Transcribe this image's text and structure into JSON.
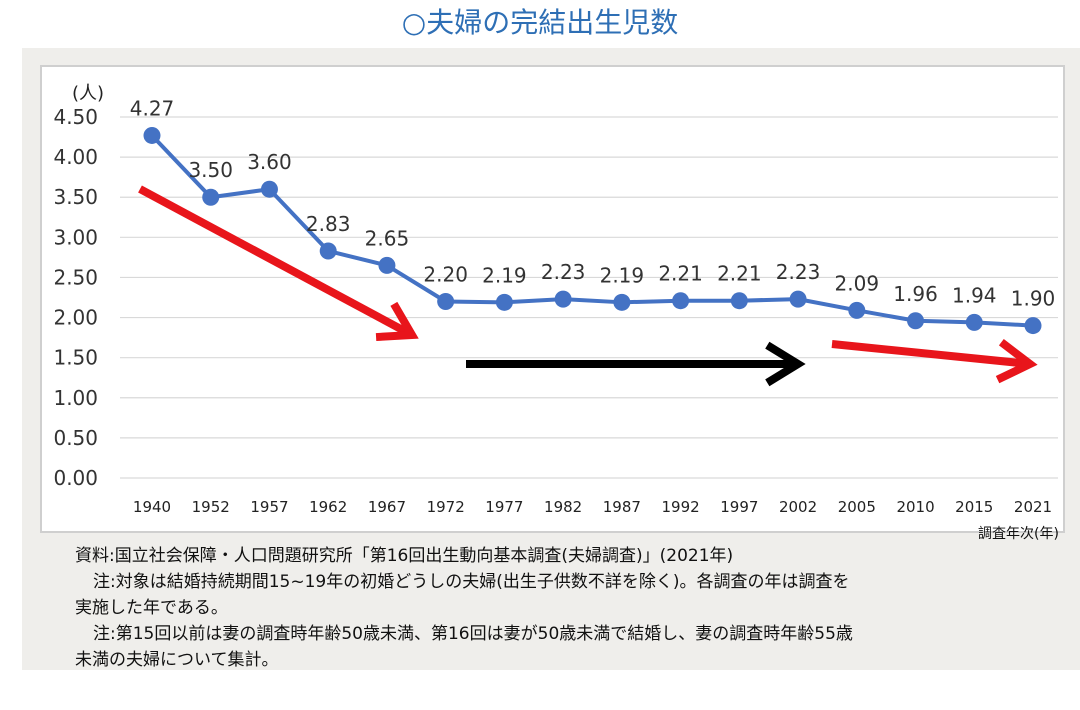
{
  "title": "○夫婦の完結出生児数",
  "chart_data": {
    "type": "line",
    "unit_label": "(人)",
    "xlabel": "調査年次(年)",
    "categories": [
      "1940",
      "1952",
      "1957",
      "1962",
      "1967",
      "1972",
      "1977",
      "1982",
      "1987",
      "1992",
      "1997",
      "2002",
      "2005",
      "2010",
      "2015",
      "2021"
    ],
    "series": [
      {
        "values": [
          4.27,
          3.5,
          3.6,
          2.83,
          2.65,
          2.2,
          2.19,
          2.23,
          2.19,
          2.21,
          2.21,
          2.23,
          2.09,
          1.96,
          1.94,
          1.9
        ]
      }
    ],
    "value_labels": [
      "4.27",
      "3.50",
      "3.60",
      "2.83",
      "2.65",
      "2.20",
      "2.19",
      "2.23",
      "2.19",
      "2.21",
      "2.21",
      "2.23",
      "2.09",
      "1.96",
      "1.94",
      "1.90"
    ],
    "yticks": [
      "0.00",
      "0.50",
      "1.00",
      "1.50",
      "2.00",
      "2.50",
      "3.00",
      "3.50",
      "4.00",
      "4.50"
    ],
    "ylim": [
      0,
      4.5
    ],
    "grid": true,
    "line_color": "#4472c4",
    "trend_arrows": [
      {
        "color": "#e8151b",
        "meaning": "decline"
      },
      {
        "color": "#000000",
        "meaning": "flat"
      },
      {
        "color": "#e8151b",
        "meaning": "decline"
      }
    ]
  },
  "notes": {
    "source": "資料:国立社会保障・人口問題研究所「第16回出生動向基本調査(夫婦調査)」(2021年)",
    "note1_line1": "注:対象は結婚持続期間15~19年の初婚どうしの夫婦(出生子供数不詳を除く)。各調査の年は調査を",
    "note1_line2": "実施した年である。",
    "note2_line1": "注:第15回以前は妻の調査時年齢50歳未満、第16回は妻が50歳未満で結婚し、妻の調査時年齢55歳",
    "note2_line2": "未満の夫婦について集計。"
  }
}
